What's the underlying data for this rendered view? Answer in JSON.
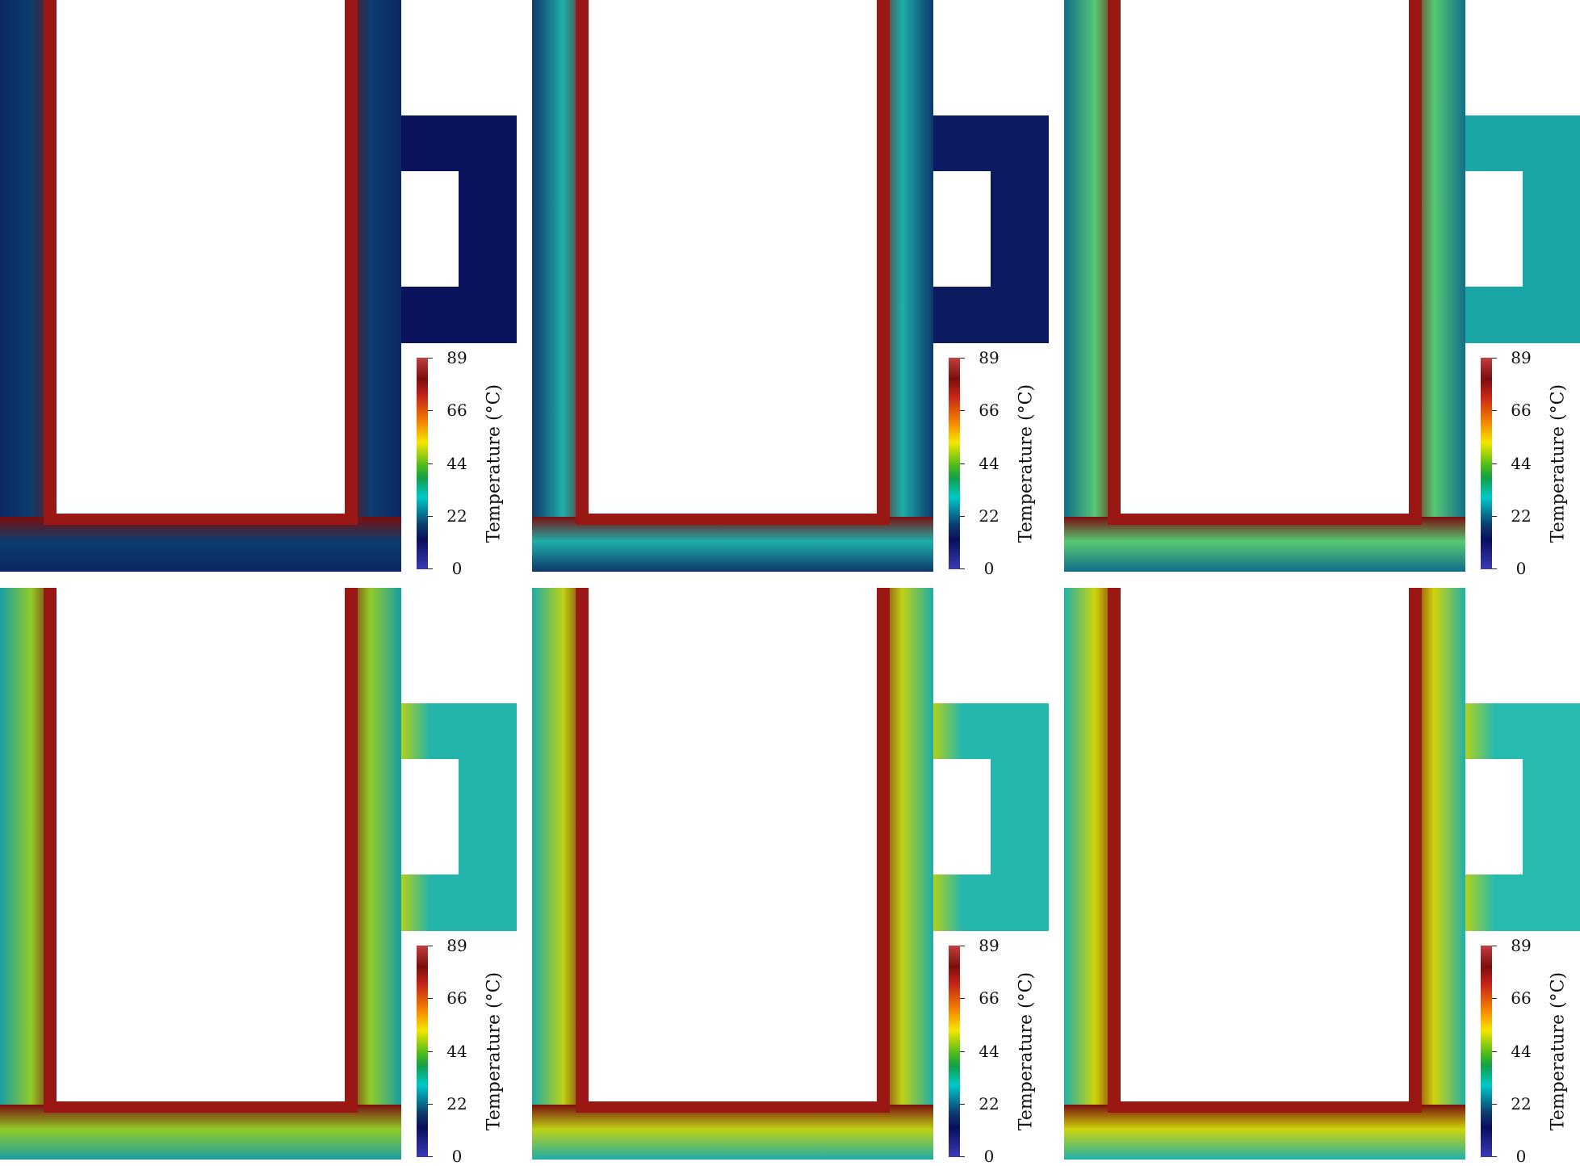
{
  "figure": {
    "panels": [
      {
        "colorbar": {
          "title": "Temperature (°C)",
          "ticks": [
            "89",
            "66",
            "44",
            "22",
            "0"
          ]
        },
        "heat": {
          "wall": 0.25,
          "handle": 0.02,
          "handle_hot": false
        }
      },
      {
        "colorbar": {
          "title": "Temperature (°C)",
          "ticks": [
            "89",
            "66",
            "44",
            "22",
            "0"
          ]
        },
        "heat": {
          "wall": 0.4,
          "handle": 0.05,
          "handle_hot": false
        }
      },
      {
        "colorbar": {
          "title": "Temperature (°C)",
          "ticks": [
            "89",
            "66",
            "44",
            "22",
            "0"
          ]
        },
        "heat": {
          "wall": 0.55,
          "handle": 0.3,
          "handle_hot": false
        }
      },
      {
        "colorbar": {
          "title": "Temperature (°C)",
          "ticks": [
            "89",
            "66",
            "44",
            "22",
            "0"
          ]
        },
        "heat": {
          "wall": 0.65,
          "handle": 0.33,
          "handle_hot": true
        }
      },
      {
        "colorbar": {
          "title": "Temperature (°C)",
          "ticks": [
            "89",
            "66",
            "44",
            "22",
            "0"
          ]
        },
        "heat": {
          "wall": 0.7,
          "handle": 0.34,
          "handle_hot": true
        }
      },
      {
        "colorbar": {
          "title": "Temperature (°C)",
          "ticks": [
            "89",
            "66",
            "44",
            "22",
            "0"
          ]
        },
        "heat": {
          "wall": 0.72,
          "handle": 0.35,
          "handle_hot": true
        }
      }
    ]
  }
}
